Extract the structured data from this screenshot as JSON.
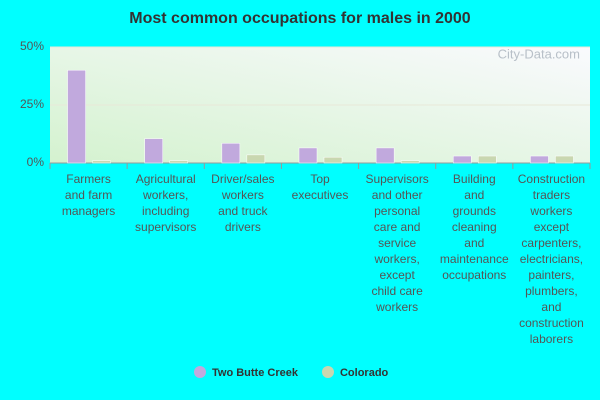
{
  "chart_data": {
    "type": "bar",
    "title": "Most common occupations for males in 2000",
    "watermark": "City-Data.com",
    "categories": [
      "Farmers and farm managers",
      "Agricultural workers, including supervisors",
      "Driver/sales workers and truck drivers",
      "Top executives",
      "Supervisors and other personal care and service workers, except child care workers",
      "Building and grounds cleaning and maintenance occupations",
      "Construction traders workers except carpenters, electricians, painters, plumbers, and construction laborers"
    ],
    "series": [
      {
        "name": "Two Butte Creek",
        "color": "#c1a9dd",
        "values": [
          40,
          10.5,
          8.5,
          6.5,
          6.5,
          3,
          3
        ]
      },
      {
        "name": "Colorado",
        "color": "#c9d7b0",
        "values": [
          1,
          1,
          3.5,
          2.5,
          1,
          3,
          3
        ]
      }
    ],
    "ylim": [
      0,
      50
    ],
    "yticks": [
      {
        "value": 0,
        "label": "0%"
      },
      {
        "value": 25,
        "label": "25%"
      },
      {
        "value": 50,
        "label": "50%"
      }
    ],
    "grid": true
  }
}
